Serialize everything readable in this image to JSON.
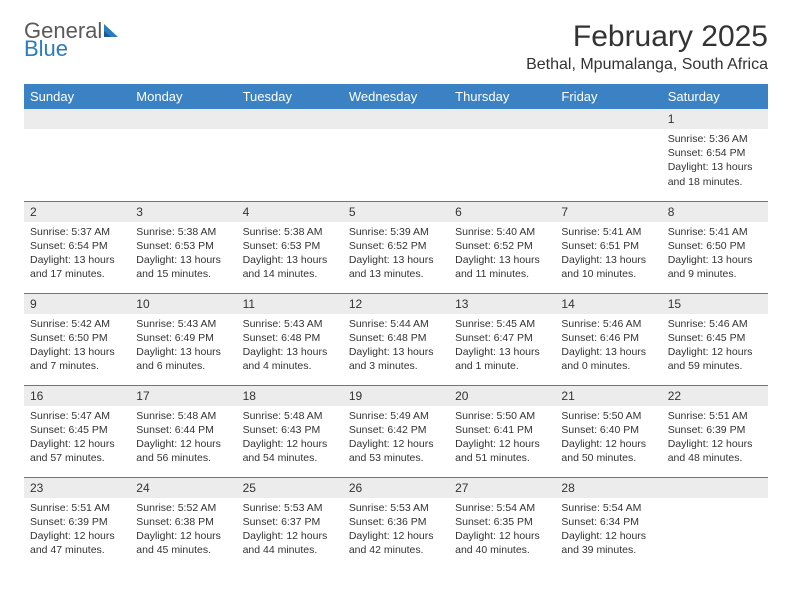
{
  "brand": {
    "name_gray": "General",
    "name_blue": "Blue"
  },
  "title": "February 2025",
  "location": "Bethal, Mpumalanga, South Africa",
  "colors": {
    "header_bg": "#3b82c4",
    "header_text": "#ffffff",
    "daynum_bg": "#ececec",
    "row_border": "#3b82c4",
    "brand_gray": "#5a5a5a",
    "brand_blue": "#2b7bbf"
  },
  "day_headers": [
    "Sunday",
    "Monday",
    "Tuesday",
    "Wednesday",
    "Thursday",
    "Friday",
    "Saturday"
  ],
  "weeks": [
    [
      {
        "n": "",
        "sunrise": "",
        "sunset": "",
        "daylight": ""
      },
      {
        "n": "",
        "sunrise": "",
        "sunset": "",
        "daylight": ""
      },
      {
        "n": "",
        "sunrise": "",
        "sunset": "",
        "daylight": ""
      },
      {
        "n": "",
        "sunrise": "",
        "sunset": "",
        "daylight": ""
      },
      {
        "n": "",
        "sunrise": "",
        "sunset": "",
        "daylight": ""
      },
      {
        "n": "",
        "sunrise": "",
        "sunset": "",
        "daylight": ""
      },
      {
        "n": "1",
        "sunrise": "Sunrise: 5:36 AM",
        "sunset": "Sunset: 6:54 PM",
        "daylight": "Daylight: 13 hours and 18 minutes."
      }
    ],
    [
      {
        "n": "2",
        "sunrise": "Sunrise: 5:37 AM",
        "sunset": "Sunset: 6:54 PM",
        "daylight": "Daylight: 13 hours and 17 minutes."
      },
      {
        "n": "3",
        "sunrise": "Sunrise: 5:38 AM",
        "sunset": "Sunset: 6:53 PM",
        "daylight": "Daylight: 13 hours and 15 minutes."
      },
      {
        "n": "4",
        "sunrise": "Sunrise: 5:38 AM",
        "sunset": "Sunset: 6:53 PM",
        "daylight": "Daylight: 13 hours and 14 minutes."
      },
      {
        "n": "5",
        "sunrise": "Sunrise: 5:39 AM",
        "sunset": "Sunset: 6:52 PM",
        "daylight": "Daylight: 13 hours and 13 minutes."
      },
      {
        "n": "6",
        "sunrise": "Sunrise: 5:40 AM",
        "sunset": "Sunset: 6:52 PM",
        "daylight": "Daylight: 13 hours and 11 minutes."
      },
      {
        "n": "7",
        "sunrise": "Sunrise: 5:41 AM",
        "sunset": "Sunset: 6:51 PM",
        "daylight": "Daylight: 13 hours and 10 minutes."
      },
      {
        "n": "8",
        "sunrise": "Sunrise: 5:41 AM",
        "sunset": "Sunset: 6:50 PM",
        "daylight": "Daylight: 13 hours and 9 minutes."
      }
    ],
    [
      {
        "n": "9",
        "sunrise": "Sunrise: 5:42 AM",
        "sunset": "Sunset: 6:50 PM",
        "daylight": "Daylight: 13 hours and 7 minutes."
      },
      {
        "n": "10",
        "sunrise": "Sunrise: 5:43 AM",
        "sunset": "Sunset: 6:49 PM",
        "daylight": "Daylight: 13 hours and 6 minutes."
      },
      {
        "n": "11",
        "sunrise": "Sunrise: 5:43 AM",
        "sunset": "Sunset: 6:48 PM",
        "daylight": "Daylight: 13 hours and 4 minutes."
      },
      {
        "n": "12",
        "sunrise": "Sunrise: 5:44 AM",
        "sunset": "Sunset: 6:48 PM",
        "daylight": "Daylight: 13 hours and 3 minutes."
      },
      {
        "n": "13",
        "sunrise": "Sunrise: 5:45 AM",
        "sunset": "Sunset: 6:47 PM",
        "daylight": "Daylight: 13 hours and 1 minute."
      },
      {
        "n": "14",
        "sunrise": "Sunrise: 5:46 AM",
        "sunset": "Sunset: 6:46 PM",
        "daylight": "Daylight: 13 hours and 0 minutes."
      },
      {
        "n": "15",
        "sunrise": "Sunrise: 5:46 AM",
        "sunset": "Sunset: 6:45 PM",
        "daylight": "Daylight: 12 hours and 59 minutes."
      }
    ],
    [
      {
        "n": "16",
        "sunrise": "Sunrise: 5:47 AM",
        "sunset": "Sunset: 6:45 PM",
        "daylight": "Daylight: 12 hours and 57 minutes."
      },
      {
        "n": "17",
        "sunrise": "Sunrise: 5:48 AM",
        "sunset": "Sunset: 6:44 PM",
        "daylight": "Daylight: 12 hours and 56 minutes."
      },
      {
        "n": "18",
        "sunrise": "Sunrise: 5:48 AM",
        "sunset": "Sunset: 6:43 PM",
        "daylight": "Daylight: 12 hours and 54 minutes."
      },
      {
        "n": "19",
        "sunrise": "Sunrise: 5:49 AM",
        "sunset": "Sunset: 6:42 PM",
        "daylight": "Daylight: 12 hours and 53 minutes."
      },
      {
        "n": "20",
        "sunrise": "Sunrise: 5:50 AM",
        "sunset": "Sunset: 6:41 PM",
        "daylight": "Daylight: 12 hours and 51 minutes."
      },
      {
        "n": "21",
        "sunrise": "Sunrise: 5:50 AM",
        "sunset": "Sunset: 6:40 PM",
        "daylight": "Daylight: 12 hours and 50 minutes."
      },
      {
        "n": "22",
        "sunrise": "Sunrise: 5:51 AM",
        "sunset": "Sunset: 6:39 PM",
        "daylight": "Daylight: 12 hours and 48 minutes."
      }
    ],
    [
      {
        "n": "23",
        "sunrise": "Sunrise: 5:51 AM",
        "sunset": "Sunset: 6:39 PM",
        "daylight": "Daylight: 12 hours and 47 minutes."
      },
      {
        "n": "24",
        "sunrise": "Sunrise: 5:52 AM",
        "sunset": "Sunset: 6:38 PM",
        "daylight": "Daylight: 12 hours and 45 minutes."
      },
      {
        "n": "25",
        "sunrise": "Sunrise: 5:53 AM",
        "sunset": "Sunset: 6:37 PM",
        "daylight": "Daylight: 12 hours and 44 minutes."
      },
      {
        "n": "26",
        "sunrise": "Sunrise: 5:53 AM",
        "sunset": "Sunset: 6:36 PM",
        "daylight": "Daylight: 12 hours and 42 minutes."
      },
      {
        "n": "27",
        "sunrise": "Sunrise: 5:54 AM",
        "sunset": "Sunset: 6:35 PM",
        "daylight": "Daylight: 12 hours and 40 minutes."
      },
      {
        "n": "28",
        "sunrise": "Sunrise: 5:54 AM",
        "sunset": "Sunset: 6:34 PM",
        "daylight": "Daylight: 12 hours and 39 minutes."
      },
      {
        "n": "",
        "sunrise": "",
        "sunset": "",
        "daylight": ""
      }
    ]
  ]
}
